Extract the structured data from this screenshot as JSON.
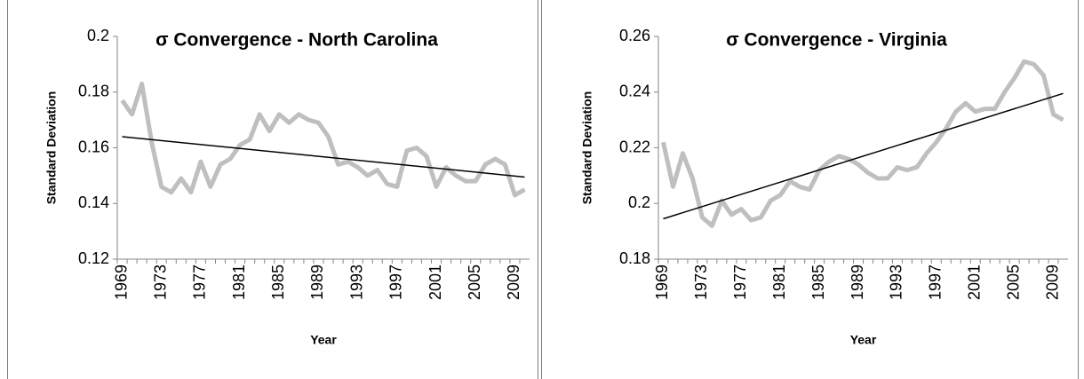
{
  "chart_data": [
    {
      "type": "line",
      "title": "σ Convergence - North Carolina",
      "x_label": "Year",
      "y_label": "Standard Deviation",
      "categories": [
        "1969",
        null,
        null,
        null,
        "1973",
        null,
        null,
        null,
        "1977",
        null,
        null,
        null,
        "1981",
        null,
        null,
        null,
        "1985",
        null,
        null,
        null,
        "1989",
        null,
        null,
        null,
        "1993",
        null,
        null,
        null,
        "1997",
        null,
        null,
        null,
        "2001",
        null,
        null,
        null,
        "2005",
        null,
        null,
        null,
        "2009",
        null
      ],
      "series": [
        {
          "color": "#bfbfbf",
          "values": [
            0.177,
            0.172,
            0.183,
            0.162,
            0.146,
            0.144,
            0.149,
            0.144,
            0.155,
            0.146,
            0.154,
            0.156,
            0.161,
            0.163,
            0.172,
            0.166,
            0.172,
            0.169,
            0.172,
            0.17,
            0.169,
            0.164,
            0.154,
            0.155,
            0.153,
            0.15,
            0.152,
            0.147,
            0.146,
            0.159,
            0.16,
            0.157,
            0.146,
            0.153,
            0.15,
            0.148,
            0.148,
            0.154,
            0.156,
            0.154,
            0.143,
            0.145
          ]
        }
      ],
      "trendline": {
        "color": "#000000",
        "values": [
          0.164,
          0.1495
        ]
      },
      "ylim": [
        0.12,
        0.2
      ],
      "yticks": [
        0.12,
        0.14,
        0.16,
        0.18,
        0.2
      ],
      "grid": false
    },
    {
      "type": "line",
      "title": "σ Convergence - Virginia",
      "x_label": "Year",
      "y_label": "Standard Deviation",
      "categories": [
        "1969",
        null,
        null,
        null,
        "1973",
        null,
        null,
        null,
        "1977",
        null,
        null,
        null,
        "1981",
        null,
        null,
        null,
        "1985",
        null,
        null,
        null,
        "1989",
        null,
        null,
        null,
        "1993",
        null,
        null,
        null,
        "1997",
        null,
        null,
        null,
        "2001",
        null,
        null,
        null,
        "2005",
        null,
        null,
        null,
        "2009",
        null
      ],
      "series": [
        {
          "color": "#bfbfbf",
          "values": [
            0.222,
            0.206,
            0.218,
            0.209,
            0.195,
            0.192,
            0.201,
            0.196,
            0.198,
            0.194,
            0.195,
            0.201,
            0.203,
            0.208,
            0.206,
            0.205,
            0.212,
            0.215,
            0.217,
            0.216,
            0.214,
            0.211,
            0.209,
            0.209,
            0.213,
            0.212,
            0.213,
            0.218,
            0.222,
            0.227,
            0.233,
            0.236,
            0.233,
            0.234,
            0.234,
            0.24,
            0.245,
            0.251,
            0.25,
            0.246,
            0.232,
            0.23
          ]
        }
      ],
      "trendline": {
        "color": "#000000",
        "values": [
          0.1945,
          0.2395
        ]
      },
      "ylim": [
        0.18,
        0.26
      ],
      "yticks": [
        0.18,
        0.2,
        0.22,
        0.24,
        0.26
      ],
      "grid": false
    }
  ]
}
